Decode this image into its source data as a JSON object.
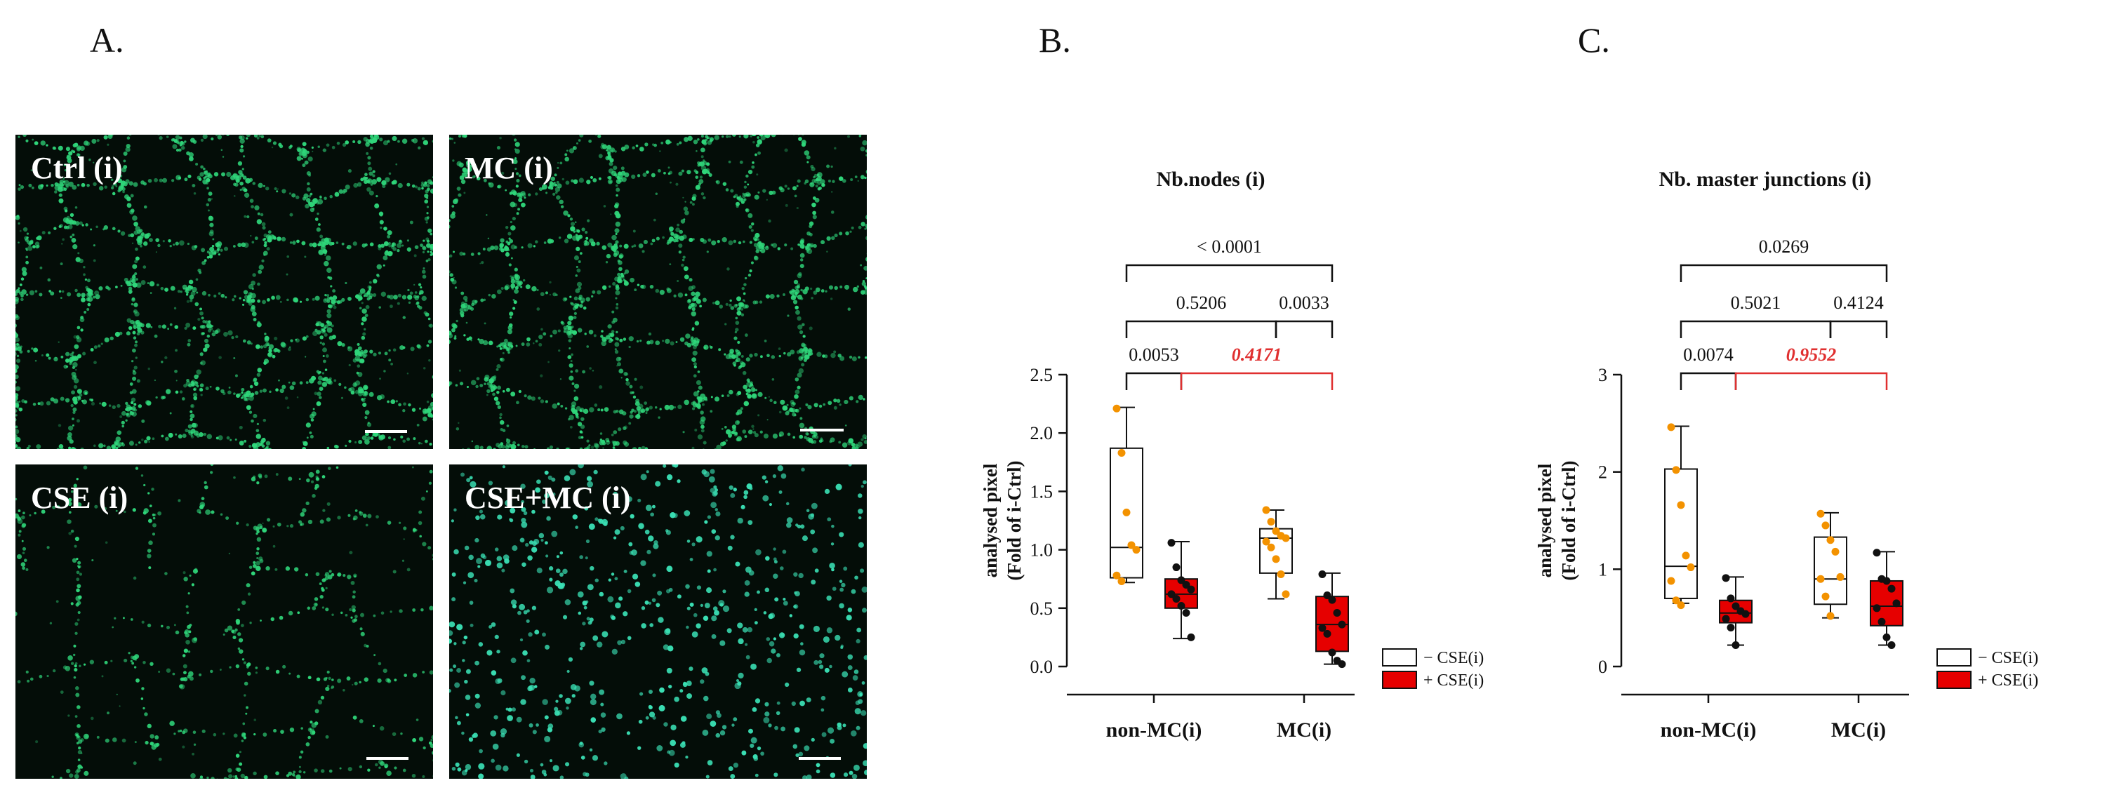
{
  "panels": {
    "a": "A.",
    "b": "B.",
    "c": "C."
  },
  "micrographs": [
    {
      "label": "Ctrl (i)",
      "pattern": "network"
    },
    {
      "label": "MC (i)",
      "pattern": "network"
    },
    {
      "label": "CSE (i)",
      "pattern": "sparse-network"
    },
    {
      "label": "CSE+MC (i)",
      "pattern": "dots"
    }
  ],
  "colors": {
    "micro_green": "#2fd67a",
    "dots_cyan": "#3ae0b4",
    "box_minus": "#ffffff",
    "box_plus": "#e60000",
    "points_minus": "#f39200",
    "points_plus": "#111111",
    "highlight": "#e03030"
  },
  "chart_data": [
    {
      "type": "box",
      "title": "Nb.nodes (i)",
      "ylabel": [
        "analysed pixel",
        "(Fold of i-Ctrl)"
      ],
      "ylim": [
        0,
        2.5
      ],
      "yticks": [
        "0.0",
        "0.5",
        "1.0",
        "1.5",
        "2.0",
        "2.5"
      ],
      "categories": [
        "non-MC(i)",
        "MC(i)"
      ],
      "legend": [
        "− CSE(i)",
        "+ CSE(i)"
      ],
      "series": [
        {
          "name": "− CSE(i)",
          "groups": [
            {
              "min": 0.72,
              "q1": 0.76,
              "median": 1.02,
              "q3": 1.87,
              "max": 2.22,
              "points": [
                2.21,
                1.83,
                1.32,
                1.04,
                1.0,
                0.78,
                0.73
              ]
            },
            {
              "min": 0.58,
              "q1": 0.8,
              "median": 1.1,
              "q3": 1.18,
              "max": 1.34,
              "points": [
                1.34,
                1.24,
                1.16,
                1.12,
                1.1,
                1.07,
                1.02,
                0.92,
                0.79,
                0.62
              ]
            }
          ]
        },
        {
          "name": "+ CSE(i)",
          "groups": [
            {
              "min": 0.24,
              "q1": 0.5,
              "median": 0.62,
              "q3": 0.75,
              "max": 1.07,
              "points": [
                1.06,
                0.85,
                0.74,
                0.7,
                0.66,
                0.62,
                0.58,
                0.52,
                0.46,
                0.25
              ]
            },
            {
              "min": 0.02,
              "q1": 0.13,
              "median": 0.36,
              "q3": 0.6,
              "max": 0.8,
              "points": [
                0.79,
                0.61,
                0.57,
                0.46,
                0.36,
                0.33,
                0.28,
                0.12,
                0.05,
                0.02
              ]
            }
          ]
        }
      ],
      "comparisons": [
        {
          "label": "0.0053",
          "from": [
            0,
            0
          ],
          "to": [
            0,
            1
          ],
          "level": 0,
          "highlight": false
        },
        {
          "label": "0.4171",
          "from": [
            0,
            1
          ],
          "to": [
            1,
            1
          ],
          "level": 0,
          "highlight": true
        },
        {
          "label": "0.5206",
          "from": [
            0,
            0
          ],
          "to": [
            1,
            0
          ],
          "level": 1,
          "highlight": false
        },
        {
          "label": "0.0033",
          "from": [
            1,
            0
          ],
          "to": [
            1,
            1
          ],
          "level": 1,
          "highlight": false
        },
        {
          "label": "< 0.0001",
          "from": [
            0,
            0
          ],
          "to": [
            1,
            1
          ],
          "level": 2,
          "highlight": false
        }
      ]
    },
    {
      "type": "box",
      "title": "Nb. master junctions (i)",
      "ylabel": [
        "analysed pixel",
        "(Fold of i-Ctrl)"
      ],
      "ylim": [
        0,
        3
      ],
      "yticks": [
        "0",
        "1",
        "2",
        "3"
      ],
      "categories": [
        "non-MC(i)",
        "MC(i)"
      ],
      "legend": [
        "− CSE(i)",
        "+ CSE(i)"
      ],
      "series": [
        {
          "name": "− CSE(i)",
          "groups": [
            {
              "min": 0.65,
              "q1": 0.7,
              "median": 1.03,
              "q3": 2.03,
              "max": 2.47,
              "points": [
                2.46,
                2.02,
                1.66,
                1.14,
                1.02,
                0.88,
                0.68,
                0.63
              ]
            },
            {
              "min": 0.5,
              "q1": 0.64,
              "median": 0.9,
              "q3": 1.33,
              "max": 1.58,
              "points": [
                1.57,
                1.45,
                1.3,
                1.18,
                0.92,
                0.9,
                0.72,
                0.52
              ]
            }
          ]
        },
        {
          "name": "+ CSE(i)",
          "groups": [
            {
              "min": 0.22,
              "q1": 0.45,
              "median": 0.55,
              "q3": 0.68,
              "max": 0.92,
              "points": [
                0.91,
                0.7,
                0.62,
                0.57,
                0.54,
                0.49,
                0.4,
                0.22
              ]
            },
            {
              "min": 0.22,
              "q1": 0.42,
              "median": 0.62,
              "q3": 0.88,
              "max": 1.18,
              "points": [
                1.17,
                0.9,
                0.88,
                0.8,
                0.65,
                0.6,
                0.46,
                0.3,
                0.22
              ]
            }
          ]
        }
      ],
      "comparisons": [
        {
          "label": "0.0074",
          "from": [
            0,
            0
          ],
          "to": [
            0,
            1
          ],
          "level": 0,
          "highlight": false
        },
        {
          "label": "0.9552",
          "from": [
            0,
            1
          ],
          "to": [
            1,
            1
          ],
          "level": 0,
          "highlight": true
        },
        {
          "label": "0.5021",
          "from": [
            0,
            0
          ],
          "to": [
            1,
            0
          ],
          "level": 1,
          "highlight": false
        },
        {
          "label": "0.4124",
          "from": [
            1,
            0
          ],
          "to": [
            1,
            1
          ],
          "level": 1,
          "highlight": false
        },
        {
          "label": "0.0269",
          "from": [
            0,
            0
          ],
          "to": [
            1,
            1
          ],
          "level": 2,
          "highlight": false
        }
      ]
    }
  ]
}
